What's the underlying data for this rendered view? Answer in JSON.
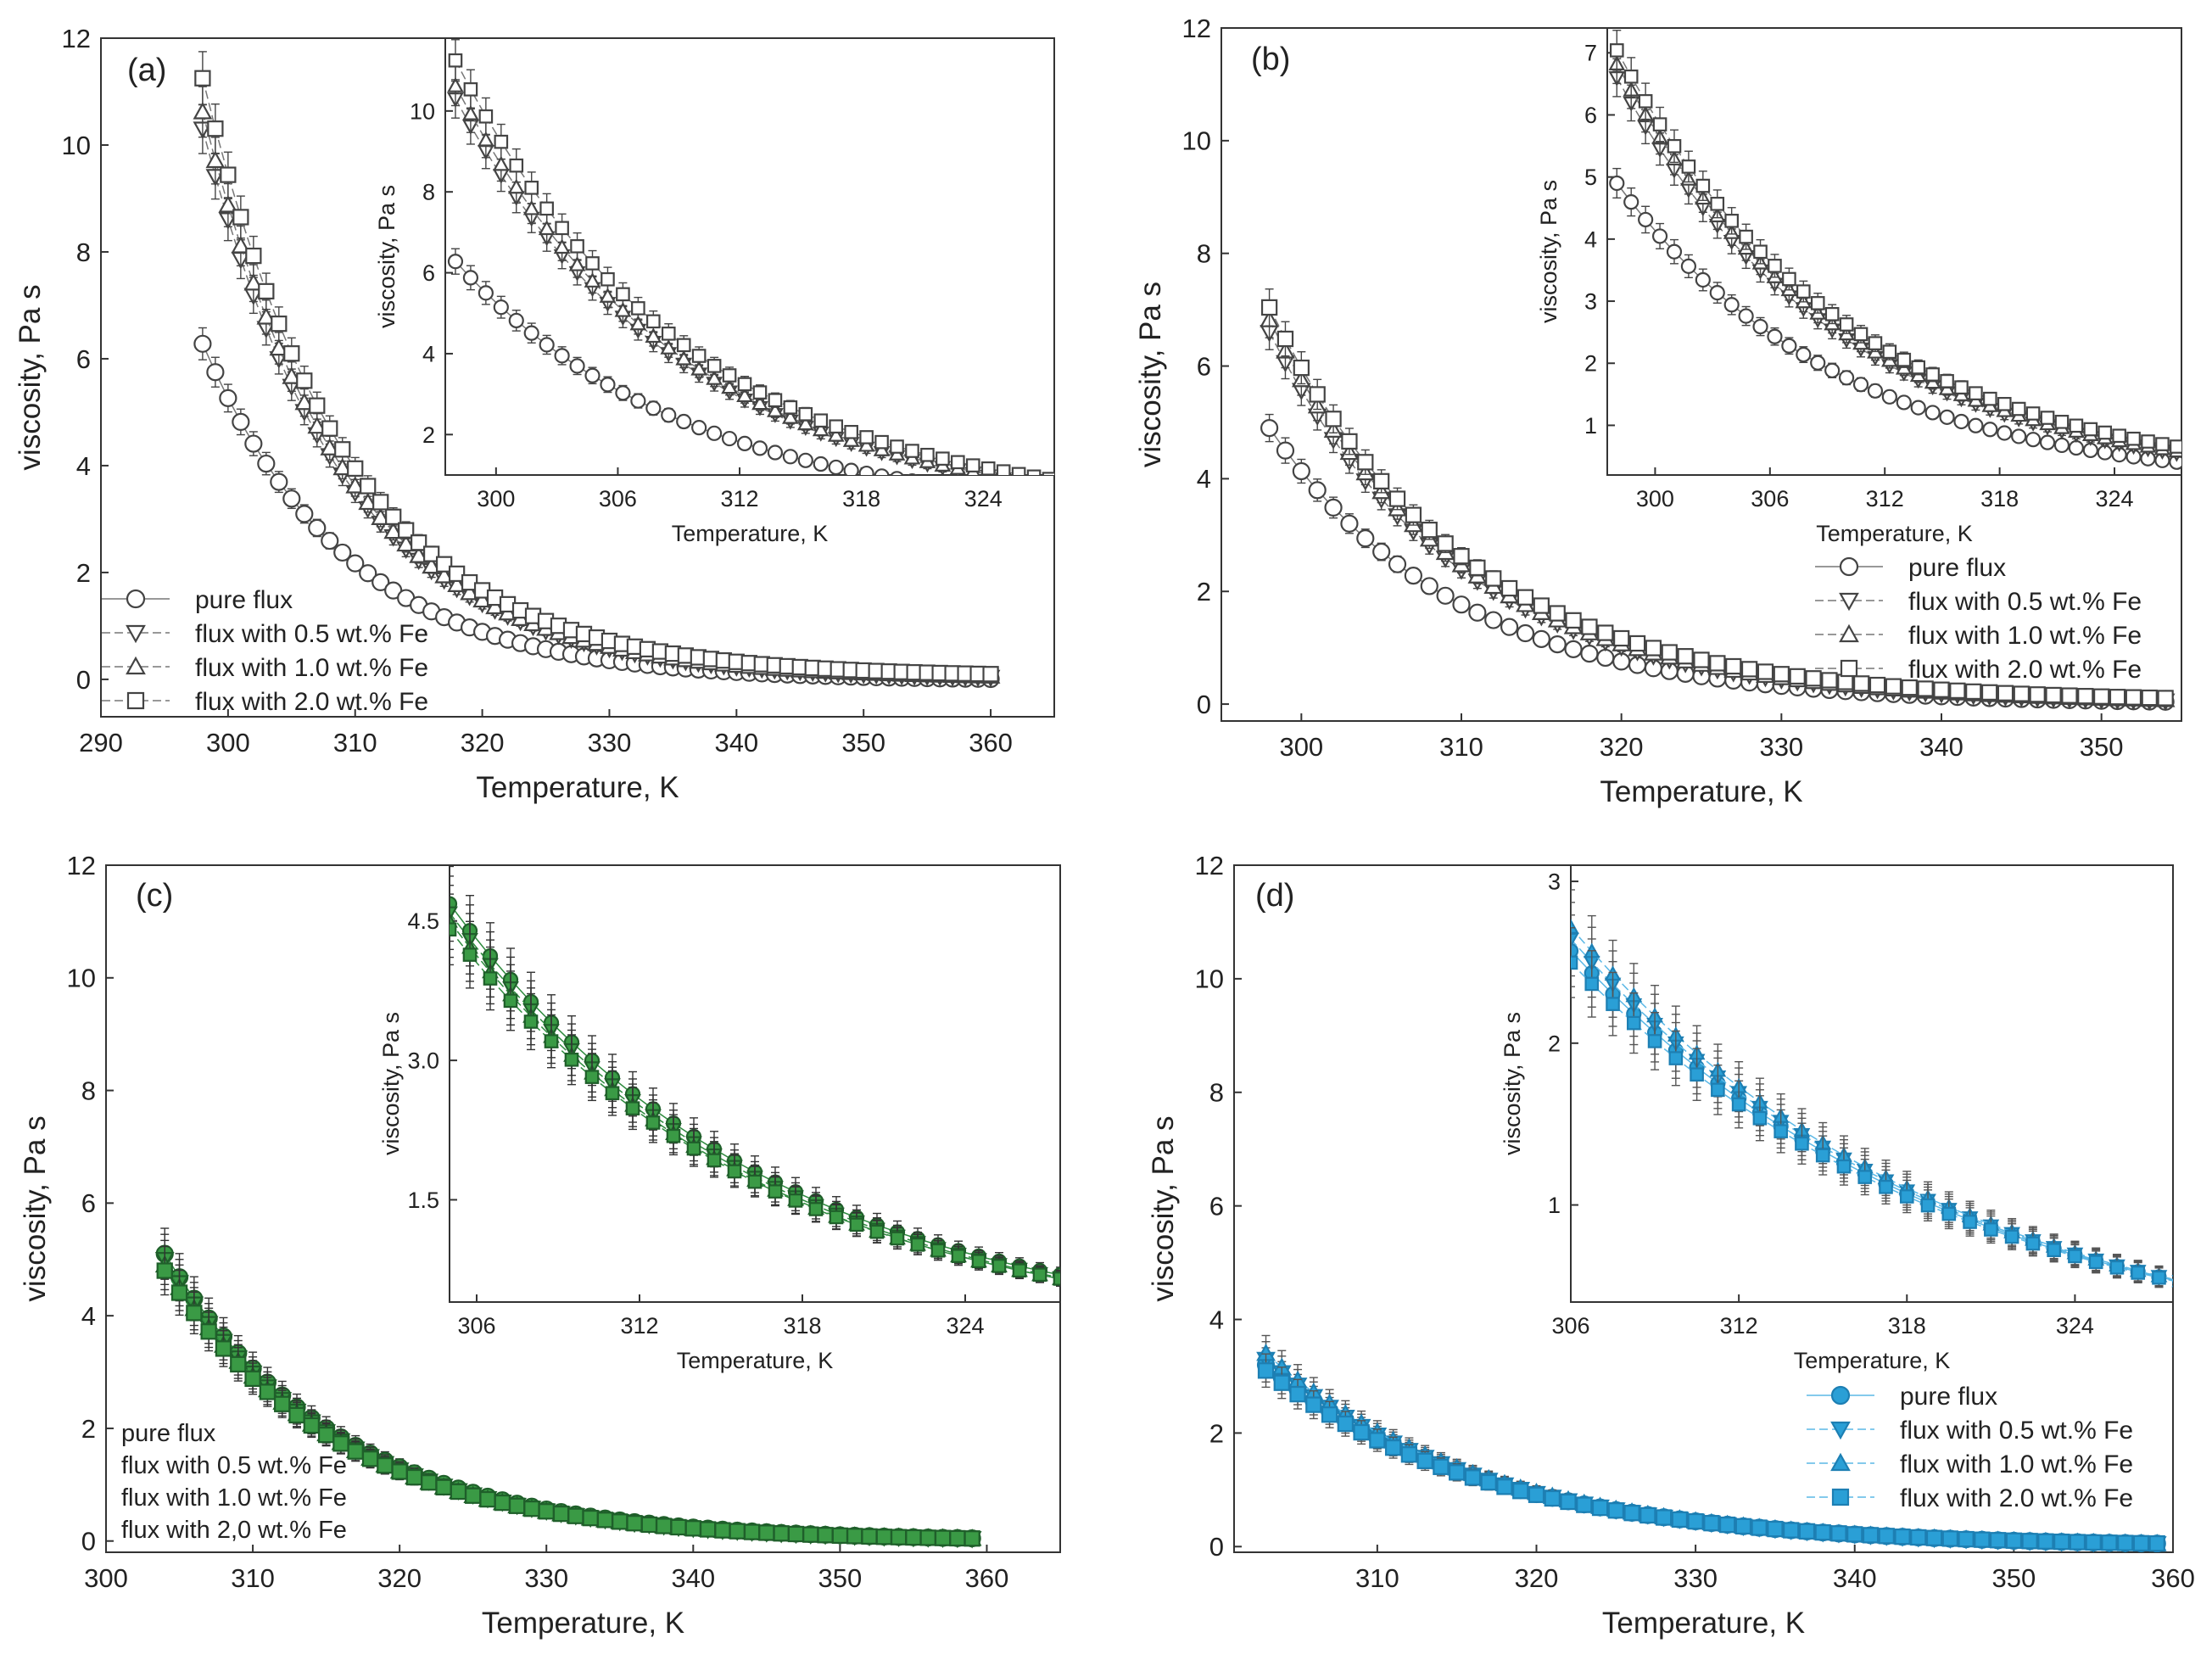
{
  "figure": {
    "description_free": true,
    "colors": {
      "axis": "#333333",
      "mono": "#444444",
      "green": "#2e8b3e",
      "blue": "#2a9fd6"
    }
  },
  "chart_data": [
    {
      "id": "a",
      "type": "scatter",
      "panel_label": "(a)",
      "xlabel": "Temperature, K",
      "ylabel": "viscosity, Pa s",
      "xlim": [
        290,
        365
      ],
      "ylim": [
        -0.7,
        12
      ],
      "xticks": [
        290,
        300,
        310,
        320,
        330,
        340,
        350,
        360
      ],
      "yticks": [
        0,
        2,
        4,
        6,
        8,
        10,
        12
      ],
      "x_start": 298,
      "x_end": 360,
      "x_step": 1,
      "style": "mono",
      "legend": {
        "position": "bottom-left",
        "entries": [
          "pure flux",
          "flux with 0.5 wt.% Fe",
          "flux with 1.0 wt.% Fe",
          "flux with 2.0 wt.% Fe"
        ]
      },
      "series": [
        {
          "name": "pure flux",
          "marker": "circle",
          "y0": 6.3,
          "k": 0.088,
          "c": -0.02
        },
        {
          "name": "flux with 0.5 wt.% Fe",
          "marker": "triangle-down",
          "y0": 10.3,
          "k": 0.09,
          "c": 0.0
        },
        {
          "name": "flux with 1.0 wt.% Fe",
          "marker": "triangle-up",
          "y0": 10.6,
          "k": 0.09,
          "c": 0.02
        },
        {
          "name": "flux with 2.0 wt.% Fe",
          "marker": "square",
          "y0": 11.2,
          "k": 0.088,
          "c": 0.05
        }
      ],
      "inset": {
        "xlabel": "Temperature, K",
        "ylabel": "viscosity, Pa s",
        "xlim": [
          297.5,
          327.5
        ],
        "ylim": [
          1,
          11.8
        ],
        "xticks": [
          300,
          306,
          312,
          318,
          324
        ],
        "yticks": [
          2,
          4,
          6,
          8,
          10
        ]
      }
    },
    {
      "id": "b",
      "type": "scatter",
      "panel_label": "(b)",
      "xlabel": "Temperature, K",
      "ylabel": "viscosity, Pa s",
      "xlim": [
        295,
        355
      ],
      "ylim": [
        -0.3,
        12
      ],
      "xticks": [
        300,
        310,
        320,
        330,
        340,
        350
      ],
      "yticks": [
        0,
        2,
        4,
        6,
        8,
        10,
        12
      ],
      "x_start": 298,
      "x_end": 354,
      "x_step": 1,
      "style": "mono",
      "legend": {
        "position": "middle-right",
        "entries": [
          "pure flux",
          "flux with 0.5 wt.% Fe",
          "flux with 1.0 wt.% Fe",
          "flux with 2.0 wt.% Fe"
        ]
      },
      "series": [
        {
          "name": "pure flux",
          "marker": "circle",
          "y0": 4.9,
          "k": 0.085,
          "c": 0.0
        },
        {
          "name": "flux with 0.5 wt.% Fe",
          "marker": "triangle-down",
          "y0": 6.6,
          "k": 0.085,
          "c": 0.0
        },
        {
          "name": "flux with 1.0 wt.% Fe",
          "marker": "triangle-up",
          "y0": 6.8,
          "k": 0.085,
          "c": 0.02
        },
        {
          "name": "flux with 2.0 wt.% Fe",
          "marker": "square",
          "y0": 7.0,
          "k": 0.083,
          "c": 0.04
        }
      ],
      "inset": {
        "xlabel": "Temperature, K",
        "ylabel": "viscosity, Pa s",
        "xlim": [
          297.5,
          327.5
        ],
        "ylim": [
          0.2,
          7.4
        ],
        "xticks": [
          300,
          306,
          312,
          318,
          324
        ],
        "yticks": [
          1,
          2,
          3,
          4,
          5,
          6,
          7
        ]
      }
    },
    {
      "id": "c",
      "type": "scatter",
      "panel_label": "(c)",
      "xlabel": "Temperature, K",
      "ylabel": "viscosity, Pa s",
      "xlim": [
        300,
        365
      ],
      "ylim": [
        -0.2,
        12
      ],
      "xticks": [
        300,
        310,
        320,
        330,
        340,
        350,
        360
      ],
      "yticks": [
        0,
        2,
        4,
        6,
        8,
        10,
        12
      ],
      "x_start": 304,
      "x_end": 359,
      "x_step": 1,
      "style": "green",
      "legend": {
        "position": "bottom-left",
        "entries": [
          "pure flux",
          "flux with 0.5 wt.% Fe",
          "flux with 1.0 wt.% Fe",
          "flux with 2,0 wt.% Fe"
        ]
      },
      "series": [
        {
          "name": "pure flux",
          "marker": "circle",
          "y0": 5.1,
          "k": 0.085,
          "c": 0.0
        },
        {
          "name": "flux with 0.5 wt.% Fe",
          "marker": "triangle-down",
          "y0": 5.0,
          "k": 0.086,
          "c": 0.0
        },
        {
          "name": "flux with 1.0 wt.% Fe",
          "marker": "triangle-up",
          "y0": 4.9,
          "k": 0.086,
          "c": 0.0
        },
        {
          "name": "flux with 2,0 wt.% Fe",
          "marker": "square",
          "y0": 4.8,
          "k": 0.085,
          "c": 0.0
        }
      ],
      "inset": {
        "xlabel": "Temperature, K",
        "ylabel": "viscosity, Pa s",
        "xlim": [
          305,
          327.5
        ],
        "ylim": [
          0.4,
          5.1
        ],
        "xticks": [
          306,
          312,
          318,
          324
        ],
        "yticks": [
          1.5,
          3.0,
          4.5
        ],
        "ytick_labels": [
          "1.5",
          "3.0",
          "4.5"
        ]
      }
    },
    {
      "id": "d",
      "type": "scatter",
      "panel_label": "(d)",
      "xlabel": "Temperature, K",
      "ylabel": "viscosity, Pa s",
      "xlim": [
        301,
        360
      ],
      "ylim": [
        -0.1,
        12
      ],
      "xticks": [
        310,
        320,
        330,
        340,
        350,
        360
      ],
      "yticks": [
        0,
        2,
        4,
        6,
        8,
        10,
        12
      ],
      "x_start": 303,
      "x_end": 359,
      "x_step": 1,
      "style": "blue",
      "legend": {
        "position": "bottom-right",
        "entries": [
          "pure flux",
          "flux with 0.5 wt.% Fe",
          "flux with 1.0 wt.% Fe",
          "flux with 2.0 wt.% Fe"
        ]
      },
      "series": [
        {
          "name": "pure flux",
          "marker": "circle",
          "y0": 3.2,
          "k": 0.073,
          "c": 0.0
        },
        {
          "name": "flux with 0.5 wt.% Fe",
          "marker": "triangle-down",
          "y0": 3.3,
          "k": 0.074,
          "c": 0.0
        },
        {
          "name": "flux with 1.0 wt.% Fe",
          "marker": "triangle-up",
          "y0": 3.4,
          "k": 0.075,
          "c": 0.0
        },
        {
          "name": "flux with 2.0 wt.% Fe",
          "marker": "square",
          "y0": 3.1,
          "k": 0.072,
          "c": 0.0
        }
      ],
      "inset": {
        "xlabel": "Temperature, K",
        "ylabel": "viscosity, Pa s",
        "xlim": [
          306,
          327.5
        ],
        "ylim": [
          0.4,
          3.1
        ],
        "xticks": [
          306,
          312,
          318,
          324
        ],
        "yticks": [
          1,
          2,
          3
        ]
      }
    }
  ]
}
